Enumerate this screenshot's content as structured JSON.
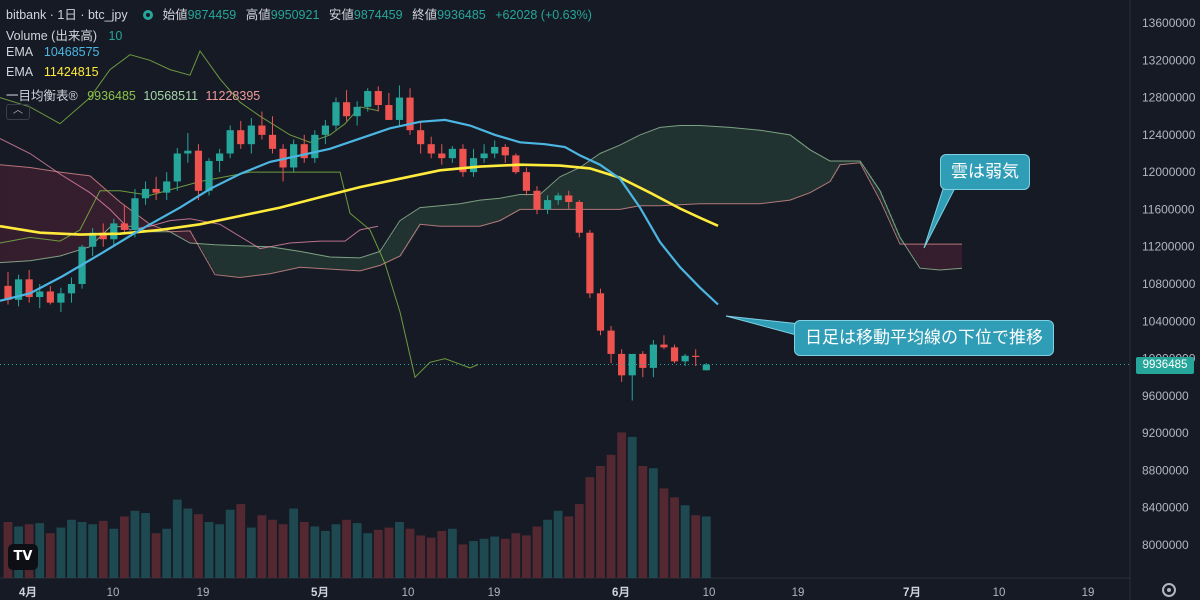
{
  "header": {
    "symbol": "bitbank · 1日 · btc_jpy",
    "open_label": "始値",
    "open_value": "9874459",
    "high_label": "高値",
    "high_value": "9950921",
    "low_label": "安値",
    "low_value": "9874459",
    "close_label": "終値",
    "close_value": "9936485",
    "change": "+62028 (+0.63%)"
  },
  "legends": [
    {
      "name": "Volume (出来高)",
      "values": [
        "10"
      ]
    },
    {
      "name": "EMA",
      "values": [
        "10468575"
      ]
    },
    {
      "name": "EMA",
      "values": [
        "11424815"
      ]
    },
    {
      "name": "一目均衡表®",
      "values": [
        "9936485",
        "10568511",
        "11228395"
      ]
    }
  ],
  "colors": {
    "up": "#26a69a",
    "down": "#ef5350",
    "ema_short": "#4cb6e3",
    "ema_long": "#ffeb3b",
    "tenkan": "#8bc34a",
    "kijun": "#f48fb1",
    "senkou_a": "#a5d6a7",
    "senkou_b": "#ef9a9a",
    "chikou": "#7cb342",
    "callout": "#2f9db6"
  },
  "current_price_label": "9936485",
  "collapse_icon": "chevron-up-icon",
  "logo_text": "TV",
  "annotations": [
    {
      "text": "雲は弱気"
    },
    {
      "text": "日足は移動平均線の下位で推移"
    }
  ],
  "chart_data": {
    "type": "candlestick",
    "title": "bitbank · 1日 · btc_jpy",
    "y_ticks": [
      13600000,
      13200000,
      12800000,
      12400000,
      12000000,
      11600000,
      11200000,
      10800000,
      10400000,
      10000000,
      9600000,
      9200000,
      8800000,
      8400000,
      8000000
    ],
    "x_ticks": [
      "4月",
      "10",
      "19",
      "5月",
      "10",
      "19",
      "6月",
      "10",
      "19",
      "7月",
      "10",
      "19"
    ],
    "ohlc": [
      [
        10780000,
        10930000,
        10580000,
        10630000
      ],
      [
        10630000,
        10900000,
        10560000,
        10850000
      ],
      [
        10850000,
        10950000,
        10600000,
        10660000
      ],
      [
        10660000,
        10800000,
        10540000,
        10720000
      ],
      [
        10720000,
        10780000,
        10580000,
        10600000
      ],
      [
        10600000,
        10760000,
        10500000,
        10700000
      ],
      [
        10700000,
        10870000,
        10600000,
        10800000
      ],
      [
        10800000,
        11220000,
        10750000,
        11200000
      ],
      [
        11200000,
        11400000,
        11100000,
        11350000
      ],
      [
        11350000,
        11450000,
        11200000,
        11280000
      ],
      [
        11280000,
        11500000,
        11200000,
        11450000
      ],
      [
        11450000,
        11650000,
        11350000,
        11380000
      ],
      [
        11380000,
        11820000,
        11300000,
        11720000
      ],
      [
        11720000,
        11900000,
        11650000,
        11820000
      ],
      [
        11820000,
        11950000,
        11700000,
        11780000
      ],
      [
        11780000,
        12000000,
        11700000,
        11900000
      ],
      [
        11900000,
        12260000,
        11800000,
        12200000
      ],
      [
        12200000,
        12420000,
        12100000,
        12230000
      ],
      [
        12230000,
        12300000,
        11700000,
        11800000
      ],
      [
        11800000,
        12150000,
        11750000,
        12120000
      ],
      [
        12120000,
        12250000,
        12000000,
        12200000
      ],
      [
        12200000,
        12500000,
        12150000,
        12450000
      ],
      [
        12450000,
        12550000,
        12250000,
        12300000
      ],
      [
        12300000,
        12580000,
        12200000,
        12500000
      ],
      [
        12500000,
        12650000,
        12350000,
        12400000
      ],
      [
        12400000,
        12600000,
        12200000,
        12250000
      ],
      [
        12250000,
        12300000,
        11900000,
        12050000
      ],
      [
        12050000,
        12350000,
        12000000,
        12300000
      ],
      [
        12300000,
        12400000,
        12100000,
        12150000
      ],
      [
        12150000,
        12450000,
        12100000,
        12400000
      ],
      [
        12400000,
        12560000,
        12300000,
        12500000
      ],
      [
        12500000,
        12800000,
        12450000,
        12750000
      ],
      [
        12750000,
        12880000,
        12550000,
        12600000
      ],
      [
        12600000,
        12760000,
        12500000,
        12700000
      ],
      [
        12700000,
        12900000,
        12650000,
        12870000
      ],
      [
        12870000,
        12920000,
        12650000,
        12720000
      ],
      [
        12720000,
        12850000,
        12560000,
        12560000
      ],
      [
        12560000,
        12930000,
        12500000,
        12800000
      ],
      [
        12800000,
        12900000,
        12400000,
        12450000
      ],
      [
        12450000,
        12550000,
        12200000,
        12300000
      ],
      [
        12300000,
        12380000,
        12150000,
        12200000
      ],
      [
        12200000,
        12300000,
        12080000,
        12150000
      ],
      [
        12150000,
        12280000,
        12100000,
        12250000
      ],
      [
        12250000,
        12300000,
        11950000,
        12000000
      ],
      [
        12000000,
        12250000,
        11950000,
        12150000
      ],
      [
        12150000,
        12300000,
        12100000,
        12200000
      ],
      [
        12200000,
        12340000,
        12150000,
        12270000
      ],
      [
        12270000,
        12300000,
        12100000,
        12180000
      ],
      [
        12180000,
        12200000,
        11980000,
        12000000
      ],
      [
        12000000,
        12050000,
        11750000,
        11800000
      ],
      [
        11800000,
        11850000,
        11550000,
        11600000
      ],
      [
        11600000,
        11750000,
        11550000,
        11700000
      ],
      [
        11700000,
        11780000,
        11650000,
        11750000
      ],
      [
        11750000,
        11800000,
        11600000,
        11680000
      ],
      [
        11680000,
        11700000,
        11300000,
        11350000
      ],
      [
        11350000,
        11380000,
        10650000,
        10700000
      ],
      [
        10700000,
        10750000,
        10250000,
        10300000
      ],
      [
        10300000,
        10350000,
        9950000,
        10050000
      ],
      [
        10050000,
        10100000,
        9750000,
        9820000
      ],
      [
        9820000,
        10050000,
        9550000,
        10050000
      ],
      [
        10050000,
        10080000,
        9800000,
        9900000
      ],
      [
        9900000,
        10200000,
        9800000,
        10150000
      ],
      [
        10150000,
        10250000,
        10100000,
        10120000
      ],
      [
        10120000,
        10150000,
        9950000,
        9970000
      ],
      [
        9970000,
        10050000,
        9920000,
        10030000
      ],
      [
        10030000,
        10100000,
        9920000,
        10020000
      ],
      [
        9874459,
        9950921,
        9874459,
        9936485
      ]
    ],
    "volume": [
      50,
      46,
      48,
      49,
      40,
      45,
      52,
      50,
      48,
      51,
      44,
      55,
      60,
      58,
      40,
      44,
      70,
      62,
      57,
      50,
      48,
      61,
      66,
      45,
      56,
      52,
      48,
      62,
      50,
      46,
      42,
      48,
      52,
      49,
      40,
      43,
      45,
      50,
      44,
      38,
      36,
      42,
      44,
      30,
      33,
      35,
      37,
      35,
      40,
      38,
      46,
      52,
      60,
      55,
      66,
      90,
      100,
      110,
      130,
      126,
      100,
      98,
      80,
      72,
      65,
      56,
      55
    ],
    "ema_short": [
      [
        0,
        10620000
      ],
      [
        30,
        10700000
      ],
      [
        62,
        10880000
      ],
      [
        100,
        11120000
      ],
      [
        140,
        11380000
      ],
      [
        180,
        11620000
      ],
      [
        210,
        11820000
      ],
      [
        240,
        11980000
      ],
      [
        270,
        12110000
      ],
      [
        300,
        12180000
      ],
      [
        330,
        12250000
      ],
      [
        360,
        12360000
      ],
      [
        390,
        12470000
      ],
      [
        420,
        12540000
      ],
      [
        445,
        12560000
      ],
      [
        470,
        12500000
      ],
      [
        495,
        12400000
      ],
      [
        520,
        12320000
      ],
      [
        545,
        12300000
      ],
      [
        565,
        12270000
      ],
      [
        580,
        12180000
      ],
      [
        600,
        12080000
      ],
      [
        620,
        11930000
      ],
      [
        640,
        11620000
      ],
      [
        660,
        11250000
      ],
      [
        680,
        10980000
      ],
      [
        700,
        10760000
      ],
      [
        718,
        10580000
      ]
    ],
    "ema_long": [
      [
        0,
        11420000
      ],
      [
        40,
        11350000
      ],
      [
        80,
        11330000
      ],
      [
        120,
        11340000
      ],
      [
        160,
        11380000
      ],
      [
        200,
        11440000
      ],
      [
        240,
        11530000
      ],
      [
        280,
        11620000
      ],
      [
        320,
        11730000
      ],
      [
        360,
        11840000
      ],
      [
        400,
        11930000
      ],
      [
        440,
        12020000
      ],
      [
        480,
        12060000
      ],
      [
        520,
        12080000
      ],
      [
        560,
        12070000
      ],
      [
        590,
        12040000
      ],
      [
        620,
        11940000
      ],
      [
        650,
        11780000
      ],
      [
        680,
        11610000
      ],
      [
        700,
        11510000
      ],
      [
        718,
        11424815
      ]
    ],
    "tenkan": [
      [
        0,
        12800000
      ],
      [
        30,
        12700000
      ],
      [
        60,
        12520000
      ],
      [
        90,
        12800000
      ],
      [
        110,
        13100000
      ],
      [
        130,
        13260000
      ],
      [
        150,
        13200000
      ],
      [
        170,
        13100000
      ],
      [
        190,
        13040000
      ],
      [
        200,
        13300000
      ],
      [
        220,
        13000000
      ],
      [
        240,
        12750000
      ],
      [
        260,
        12600000
      ],
      [
        290,
        12400000
      ],
      [
        310,
        12320000
      ],
      [
        330,
        12400000
      ],
      [
        345,
        12520000
      ],
      [
        360,
        12700000
      ],
      [
        378,
        12660000
      ]
    ],
    "kijun": [
      [
        0,
        12360000
      ],
      [
        30,
        12200000
      ],
      [
        60,
        11980000
      ],
      [
        90,
        11780000
      ],
      [
        110,
        11600000
      ],
      [
        130,
        11380000
      ],
      [
        150,
        11420000
      ],
      [
        170,
        11480000
      ],
      [
        190,
        11500000
      ],
      [
        220,
        11440000
      ],
      [
        260,
        11180000
      ],
      [
        290,
        11240000
      ],
      [
        320,
        11260000
      ],
      [
        345,
        11260000
      ],
      [
        360,
        11380000
      ],
      [
        378,
        11420000
      ]
    ],
    "senkou_a": [
      [
        0,
        11030000
      ],
      [
        30,
        11050000
      ],
      [
        60,
        11100000
      ],
      [
        90,
        11200000
      ],
      [
        110,
        11410000
      ],
      [
        130,
        11420000
      ],
      [
        150,
        11360000
      ],
      [
        170,
        11360000
      ],
      [
        190,
        11240000
      ],
      [
        215,
        11220000
      ],
      [
        240,
        11210000
      ],
      [
        270,
        11200000
      ],
      [
        300,
        11150000
      ],
      [
        330,
        11090000
      ],
      [
        360,
        11080000
      ],
      [
        380,
        11150000
      ],
      [
        400,
        11480000
      ],
      [
        420,
        11620000
      ],
      [
        440,
        11640000
      ],
      [
        460,
        11660000
      ],
      [
        480,
        11700000
      ],
      [
        500,
        11720000
      ],
      [
        520,
        11760000
      ],
      [
        540,
        11760000
      ],
      [
        560,
        11950000
      ],
      [
        580,
        12050000
      ],
      [
        600,
        12200000
      ],
      [
        620,
        12290000
      ],
      [
        640,
        12400000
      ],
      [
        660,
        12480000
      ],
      [
        680,
        12500000
      ],
      [
        700,
        12500000
      ],
      [
        730,
        12480000
      ],
      [
        760,
        12450000
      ],
      [
        790,
        12400000
      ],
      [
        810,
        12240000
      ],
      [
        830,
        12120000
      ],
      [
        860,
        12120000
      ],
      [
        880,
        11800000
      ],
      [
        900,
        11300000
      ],
      [
        920,
        10970000
      ],
      [
        940,
        10950000
      ],
      [
        962,
        10970000
      ]
    ],
    "senkou_b": [
      [
        0,
        12080000
      ],
      [
        30,
        12050000
      ],
      [
        60,
        12000000
      ],
      [
        90,
        11960000
      ],
      [
        120,
        11680000
      ],
      [
        150,
        11440000
      ],
      [
        170,
        11360000
      ],
      [
        190,
        11370000
      ],
      [
        215,
        10900000
      ],
      [
        240,
        10870000
      ],
      [
        270,
        10910000
      ],
      [
        300,
        10980000
      ],
      [
        330,
        10960000
      ],
      [
        360,
        10940000
      ],
      [
        380,
        11000000
      ],
      [
        400,
        11100000
      ],
      [
        420,
        11440000
      ],
      [
        440,
        11420000
      ],
      [
        460,
        11420000
      ],
      [
        480,
        11420000
      ],
      [
        500,
        11480000
      ],
      [
        520,
        11600000
      ],
      [
        540,
        11600000
      ],
      [
        560,
        11600000
      ],
      [
        580,
        11600000
      ],
      [
        600,
        11600000
      ],
      [
        620,
        11600000
      ],
      [
        640,
        11640000
      ],
      [
        660,
        11640000
      ],
      [
        700,
        11660000
      ],
      [
        730,
        11660000
      ],
      [
        760,
        11660000
      ],
      [
        790,
        11700000
      ],
      [
        810,
        11780000
      ],
      [
        830,
        11900000
      ],
      [
        840,
        12080000
      ],
      [
        860,
        12100000
      ],
      [
        880,
        11700000
      ],
      [
        900,
        11228395
      ],
      [
        962,
        11228395
      ]
    ],
    "chikou": [
      [
        0,
        11240000
      ],
      [
        30,
        11300000
      ],
      [
        60,
        11260000
      ],
      [
        80,
        11380000
      ],
      [
        100,
        11800000
      ],
      [
        120,
        11800000
      ],
      [
        150,
        11750000
      ],
      [
        200,
        11900000
      ],
      [
        250,
        12000000
      ],
      [
        300,
        12000000
      ],
      [
        340,
        12000000
      ],
      [
        350,
        11560000
      ],
      [
        370,
        11380000
      ],
      [
        385,
        11020000
      ],
      [
        400,
        10500000
      ],
      [
        415,
        9800000
      ],
      [
        430,
        9960000
      ],
      [
        445,
        10000000
      ],
      [
        460,
        9940000
      ],
      [
        470,
        9900000
      ],
      [
        478,
        9936485
      ]
    ]
  }
}
